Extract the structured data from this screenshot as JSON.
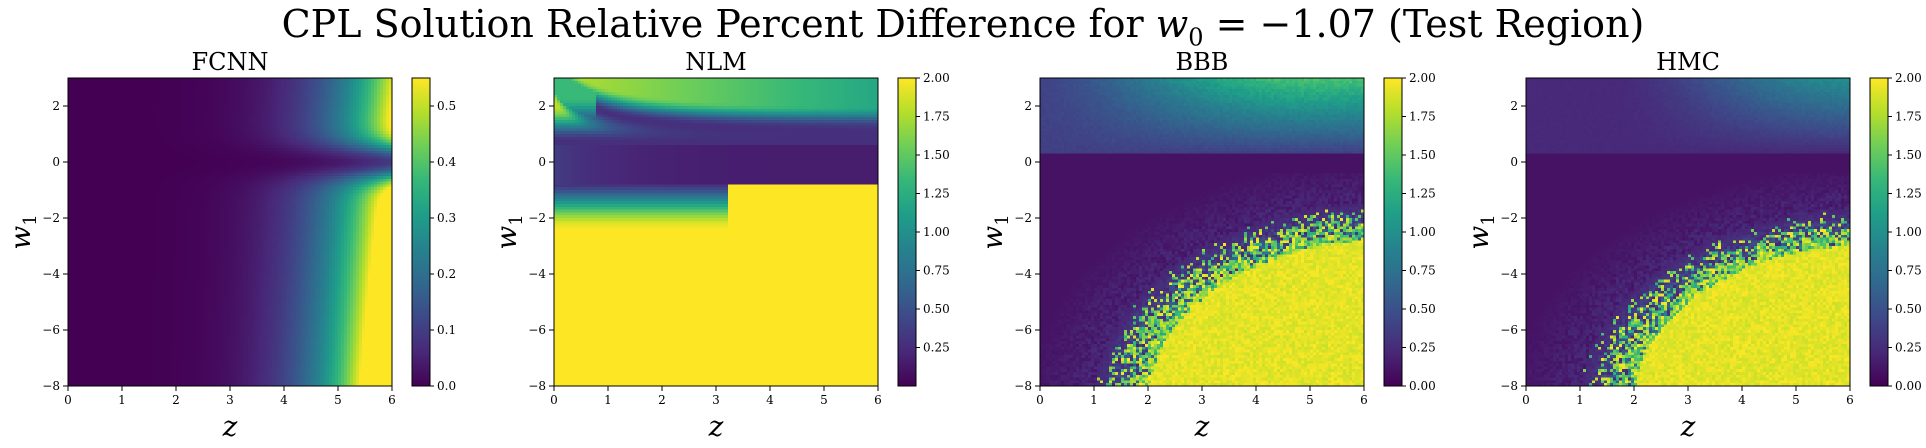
{
  "figure": {
    "title_text": "CPL Solution Relative Percent Difference for ",
    "title_math": "w",
    "title_math_sub": "0",
    "title_eq": " = −1.07",
    "title_suffix": " (Test Region)"
  },
  "colormap": {
    "name": "viridis",
    "stops": [
      "#440154",
      "#482878",
      "#3e4989",
      "#31688e",
      "#26828e",
      "#1f9e89",
      "#35b779",
      "#6ece58",
      "#b5de2b",
      "#fde725"
    ]
  },
  "chart_data": [
    {
      "type": "heatmap",
      "title": "FCNN",
      "xlabel": "z",
      "ylabel": "w",
      "ylabel_sub": "1",
      "xlim": [
        0,
        6
      ],
      "ylim": [
        -8,
        3
      ],
      "xticks": [
        "0",
        "1",
        "2",
        "3",
        "4",
        "5",
        "6"
      ],
      "yticks": [
        "−8",
        "−6",
        "−4",
        "−2",
        "0",
        "2"
      ],
      "colorbar": {
        "min": 0.0,
        "max": 0.55,
        "ticks": [
          "0.0",
          "0.1",
          "0.2",
          "0.3",
          "0.4",
          "0.5"
        ],
        "tick_values": [
          0.0,
          0.1,
          0.2,
          0.3,
          0.4,
          0.5
        ]
      },
      "pattern": "fcnn"
    },
    {
      "type": "heatmap",
      "title": "NLM",
      "xlabel": "z",
      "ylabel": "w",
      "ylabel_sub": "1",
      "xlim": [
        0,
        6
      ],
      "ylim": [
        -8,
        3
      ],
      "xticks": [
        "0",
        "1",
        "2",
        "3",
        "4",
        "5",
        "6"
      ],
      "yticks": [
        "−8",
        "−6",
        "−4",
        "−2",
        "0",
        "2"
      ],
      "colorbar": {
        "min": 0.0,
        "max": 2.0,
        "ticks": [
          "0.25",
          "0.50",
          "0.75",
          "1.00",
          "1.25",
          "1.50",
          "1.75",
          "2.00"
        ],
        "tick_values": [
          0.25,
          0.5,
          0.75,
          1.0,
          1.25,
          1.5,
          1.75,
          2.0
        ]
      },
      "pattern": "nlm"
    },
    {
      "type": "heatmap",
      "title": "BBB",
      "xlabel": "z",
      "ylabel": "w",
      "ylabel_sub": "1",
      "xlim": [
        0,
        6
      ],
      "ylim": [
        -8,
        3
      ],
      "xticks": [
        "0",
        "1",
        "2",
        "3",
        "4",
        "5",
        "6"
      ],
      "yticks": [
        "−8",
        "−6",
        "−4",
        "−2",
        "0",
        "2"
      ],
      "colorbar": {
        "min": 0.0,
        "max": 2.0,
        "ticks": [
          "0.00",
          "0.25",
          "0.50",
          "0.75",
          "1.00",
          "1.25",
          "1.50",
          "1.75",
          "2.00"
        ],
        "tick_values": [
          0.0,
          0.25,
          0.5,
          0.75,
          1.0,
          1.25,
          1.5,
          1.75,
          2.0
        ]
      },
      "pattern": "bbb"
    },
    {
      "type": "heatmap",
      "title": "HMC",
      "xlabel": "z",
      "ylabel": "w",
      "ylabel_sub": "1",
      "xlim": [
        0,
        6
      ],
      "ylim": [
        -8,
        3
      ],
      "xticks": [
        "0",
        "1",
        "2",
        "3",
        "4",
        "5",
        "6"
      ],
      "yticks": [
        "−8",
        "−6",
        "−4",
        "−2",
        "0",
        "2"
      ],
      "colorbar": {
        "min": 0.0,
        "max": 2.0,
        "ticks": [
          "0.00",
          "0.25",
          "0.50",
          "0.75",
          "1.00",
          "1.25",
          "1.50",
          "1.75",
          "2.00"
        ],
        "tick_values": [
          0.0,
          0.25,
          0.5,
          0.75,
          1.0,
          1.25,
          1.5,
          1.75,
          2.0
        ]
      },
      "pattern": "hmc"
    }
  ]
}
